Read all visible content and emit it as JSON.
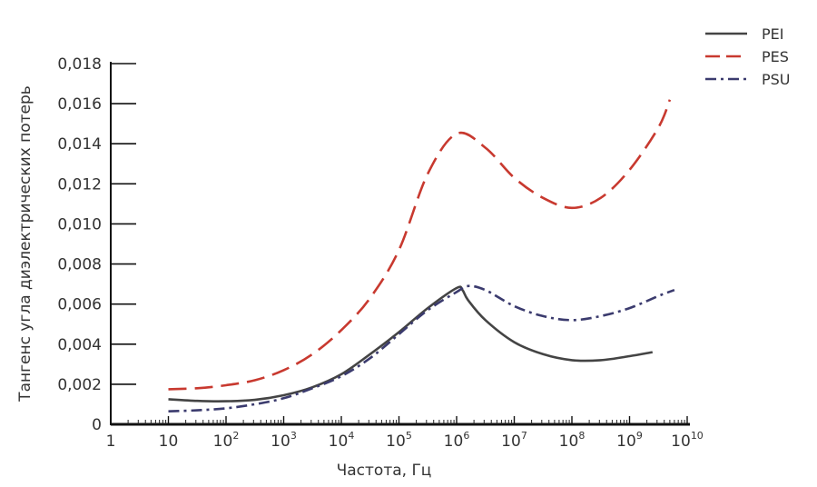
{
  "chart_data": {
    "type": "line",
    "title": "",
    "xlabel": "Частота, Гц",
    "ylabel": "Тангенс угла диэлектрических потерь",
    "x_scale": "log",
    "xlim": [
      1,
      10000000000
    ],
    "ylim": [
      0,
      0.018
    ],
    "grid": false,
    "legend_position": "top-right",
    "x_ticks": [
      {
        "value": 1,
        "base": "1",
        "exp": ""
      },
      {
        "value": 10,
        "base": "10",
        "exp": ""
      },
      {
        "value": 100,
        "base": "10",
        "exp": "2"
      },
      {
        "value": 1000,
        "base": "10",
        "exp": "3"
      },
      {
        "value": 10000,
        "base": "10",
        "exp": "4"
      },
      {
        "value": 100000,
        "base": "10",
        "exp": "5"
      },
      {
        "value": 1000000,
        "base": "10",
        "exp": "6"
      },
      {
        "value": 10000000,
        "base": "10",
        "exp": "7"
      },
      {
        "value": 100000000,
        "base": "10",
        "exp": "8"
      },
      {
        "value": 1000000000,
        "base": "10",
        "exp": "9"
      },
      {
        "value": 10000000000,
        "base": "10",
        "exp": "10"
      }
    ],
    "y_ticks": [
      {
        "value": 0,
        "label": "0"
      },
      {
        "value": 0.002,
        "label": "0,002"
      },
      {
        "value": 0.004,
        "label": "0,004"
      },
      {
        "value": 0.006,
        "label": "0,006"
      },
      {
        "value": 0.008,
        "label": "0,008"
      },
      {
        "value": 0.01,
        "label": "0,010"
      },
      {
        "value": 0.012,
        "label": "0,012"
      },
      {
        "value": 0.014,
        "label": "0,014"
      },
      {
        "value": 0.016,
        "label": "0,016"
      },
      {
        "value": 0.018,
        "label": "0,018"
      }
    ],
    "series": [
      {
        "name": "PEI",
        "color": "#444444",
        "dash": "solid",
        "points": [
          [
            10,
            0.00125
          ],
          [
            31.6,
            0.00117
          ],
          [
            100,
            0.00115
          ],
          [
            316,
            0.00122
          ],
          [
            1000,
            0.00145
          ],
          [
            3160,
            0.00185
          ],
          [
            10000,
            0.0025
          ],
          [
            31600,
            0.0035
          ],
          [
            100000,
            0.0046
          ],
          [
            316000,
            0.0058
          ],
          [
            1000000,
            0.0068
          ],
          [
            1260000,
            0.0067
          ],
          [
            1580000,
            0.0062
          ],
          [
            3160000,
            0.0052
          ],
          [
            10000000,
            0.0041
          ],
          [
            31600000,
            0.0035
          ],
          [
            100000000,
            0.0032
          ],
          [
            316000000,
            0.0032
          ],
          [
            1000000000,
            0.0034
          ],
          [
            2500000000,
            0.0036
          ]
        ]
      },
      {
        "name": "PES",
        "color": "#c8392f",
        "dash": "long-dash",
        "points": [
          [
            10,
            0.00175
          ],
          [
            31.6,
            0.0018
          ],
          [
            100,
            0.00195
          ],
          [
            316,
            0.0022
          ],
          [
            1000,
            0.0027
          ],
          [
            3160,
            0.0035
          ],
          [
            10000,
            0.0047
          ],
          [
            31600,
            0.0063
          ],
          [
            100000,
            0.0087
          ],
          [
            316000,
            0.0125
          ],
          [
            1000000,
            0.0145
          ],
          [
            3160000,
            0.0138
          ],
          [
            10000000,
            0.0123
          ],
          [
            31600000,
            0.0113
          ],
          [
            100000000,
            0.0108
          ],
          [
            316000000,
            0.0113
          ],
          [
            1000000000,
            0.0127
          ],
          [
            3160000000,
            0.0148
          ],
          [
            5000000000,
            0.0162
          ]
        ]
      },
      {
        "name": "PSU",
        "color": "#3b3b6e",
        "dash": "dash-dot",
        "points": [
          [
            10,
            0.00065
          ],
          [
            31.6,
            0.0007
          ],
          [
            100,
            0.0008
          ],
          [
            316,
            0.001
          ],
          [
            1000,
            0.0013
          ],
          [
            3160,
            0.0018
          ],
          [
            10000,
            0.0024
          ],
          [
            31600,
            0.0033
          ],
          [
            100000,
            0.0045
          ],
          [
            316000,
            0.0057
          ],
          [
            1000000,
            0.0066
          ],
          [
            1580000,
            0.0069
          ],
          [
            3160000,
            0.0067
          ],
          [
            10000000,
            0.0059
          ],
          [
            31600000,
            0.0054
          ],
          [
            100000000,
            0.0052
          ],
          [
            316000000,
            0.0054
          ],
          [
            1000000000,
            0.0058
          ],
          [
            3160000000,
            0.0064
          ],
          [
            6000000000,
            0.0067
          ]
        ]
      }
    ]
  }
}
